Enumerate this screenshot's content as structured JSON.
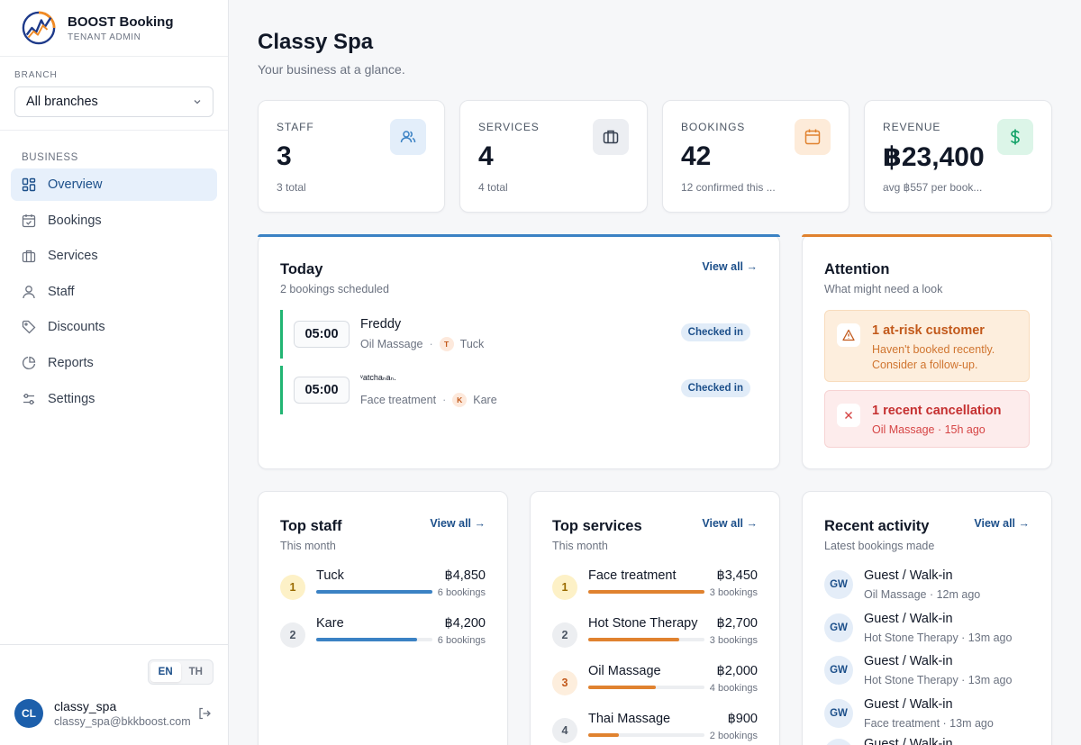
{
  "app": {
    "name": "BOOST Booking",
    "role": "TENANT ADMIN"
  },
  "branch": {
    "label": "BRANCH",
    "selected": "All branches"
  },
  "nav": {
    "section": "BUSINESS",
    "items": [
      {
        "label": "Overview",
        "icon": "grid-icon",
        "active": true
      },
      {
        "label": "Bookings",
        "icon": "calendar-check-icon"
      },
      {
        "label": "Services",
        "icon": "briefcase-icon"
      },
      {
        "label": "Staff",
        "icon": "user-icon"
      },
      {
        "label": "Discounts",
        "icon": "tag-icon"
      },
      {
        "label": "Reports",
        "icon": "pie-chart-icon"
      },
      {
        "label": "Settings",
        "icon": "sliders-icon"
      }
    ]
  },
  "lang": {
    "en": "EN",
    "th": "TH",
    "active": "EN"
  },
  "user": {
    "initials": "CL",
    "name": "classy_spa",
    "email": "classy_spa@bkkboost.com"
  },
  "page": {
    "title": "Classy Spa",
    "subtitle": "Your business at a glance."
  },
  "stats": [
    {
      "label": "STAFF",
      "value": "3",
      "sub": "3 total",
      "icon": "users-icon",
      "color": "#3b82c4"
    },
    {
      "label": "SERVICES",
      "value": "4",
      "sub": "4 total",
      "icon": "briefcase-icon",
      "color": "#4b5563"
    },
    {
      "label": "BOOKINGS",
      "value": "42",
      "sub": "12 confirmed this ...",
      "icon": "calendar-icon",
      "color": "#e0822f"
    },
    {
      "label": "REVENUE",
      "value": "฿23,400",
      "sub": "avg ฿557 per book...",
      "icon": "dollar-icon",
      "color": "#16a36a"
    }
  ],
  "today": {
    "title": "Today",
    "subtitle": "2 bookings scheduled",
    "view_all": "View all →",
    "bookings": [
      {
        "time": "05:00",
        "customer": "Freddy",
        "service": "Oil Massage",
        "staff_initial": "T",
        "staff": "Tuck",
        "status": "Checked in"
      },
      {
        "time": "05:00",
        "customer": "ᵛatchaₙaₙ.",
        "service": "Face treatment",
        "staff_initial": "K",
        "staff": "Kare",
        "status": "Checked in"
      }
    ]
  },
  "attention": {
    "title": "Attention",
    "subtitle": "What might need a look",
    "alerts": [
      {
        "title": "1 at-risk customer",
        "body": "Haven't booked recently. Consider a follow-up.",
        "icon": "warning-icon"
      },
      {
        "title": "1 recent cancellation",
        "body": "Oil Massage · 15h ago",
        "icon": "close-icon"
      }
    ]
  },
  "top_staff": {
    "title": "Top staff",
    "subtitle": "This month",
    "view_all": "View all →",
    "items": [
      {
        "rank": "1",
        "name": "Tuck",
        "amount": "฿4,850",
        "count": "6 bookings",
        "share": 1.0
      },
      {
        "rank": "2",
        "name": "Kare",
        "amount": "฿4,200",
        "count": "6 bookings",
        "share": 0.87
      }
    ]
  },
  "top_services": {
    "title": "Top services",
    "subtitle": "This month",
    "view_all": "View all →",
    "items": [
      {
        "rank": "1",
        "name": "Face treatment",
        "amount": "฿3,450",
        "count": "3 bookings",
        "share": 1.0
      },
      {
        "rank": "2",
        "name": "Hot Stone Therapy",
        "amount": "฿2,700",
        "count": "3 bookings",
        "share": 0.78
      },
      {
        "rank": "3",
        "name": "Oil Massage",
        "amount": "฿2,000",
        "count": "4 bookings",
        "share": 0.58
      },
      {
        "rank": "4",
        "name": "Thai Massage",
        "amount": "฿900",
        "count": "2 bookings",
        "share": 0.26
      }
    ]
  },
  "activity": {
    "title": "Recent activity",
    "subtitle": "Latest bookings made",
    "view_all": "View all →",
    "items": [
      {
        "initials": "GW",
        "name": "Guest / Walk-in",
        "meta": "Oil Massage · 12m ago"
      },
      {
        "initials": "GW",
        "name": "Guest / Walk-in",
        "meta": "Hot Stone Therapy · 13m ago"
      },
      {
        "initials": "GW",
        "name": "Guest / Walk-in",
        "meta": "Hot Stone Therapy · 13m ago"
      },
      {
        "initials": "GW",
        "name": "Guest / Walk-in",
        "meta": "Face treatment · 13m ago"
      },
      {
        "initials": "GW",
        "name": "Guest / Walk-in",
        "meta": ""
      }
    ]
  },
  "colors": {
    "accent": "#1c4f8a",
    "today_accent": "#3b82c4",
    "attention_accent": "#e0822f",
    "staff_bar": "#3b82c4",
    "service_bar": "#e0822f"
  }
}
